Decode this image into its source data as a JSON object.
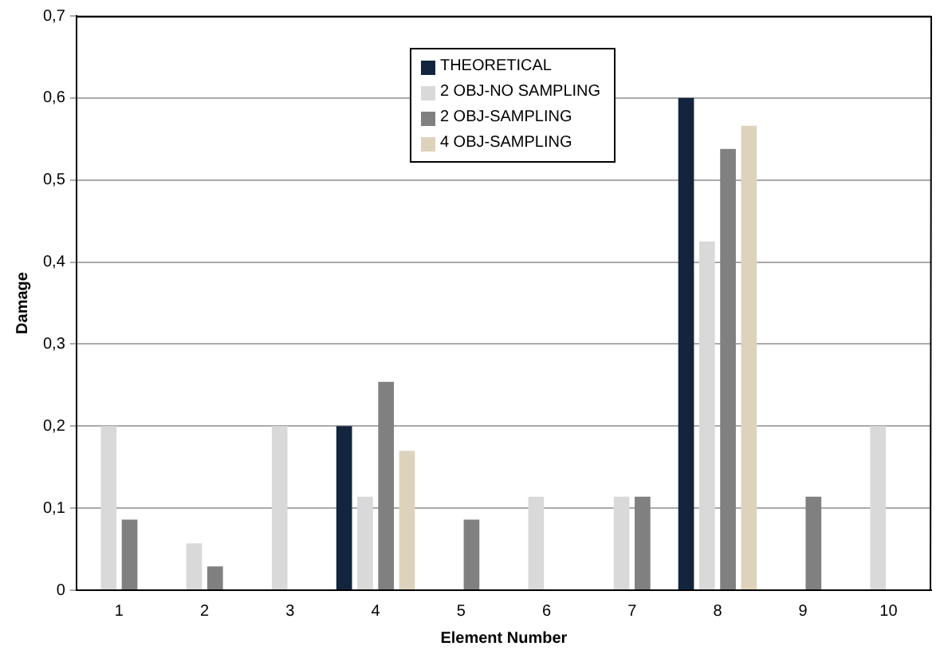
{
  "chart_data": {
    "type": "bar",
    "xlabel": "Element Number",
    "ylabel": "Damage",
    "categories": [
      "1",
      "2",
      "3",
      "4",
      "5",
      "6",
      "7",
      "8",
      "9",
      "10"
    ],
    "series": [
      {
        "name": "THEORETICAL",
        "color": "#13243f",
        "values": [
          0,
          0,
          0,
          0.2,
          0,
          0,
          0,
          0.6,
          0,
          0
        ]
      },
      {
        "name": "2 OBJ-NO SAMPLING",
        "color": "#d9d9d9",
        "values": [
          0.2,
          0.057,
          0.2,
          0.114,
          0,
          0.114,
          0.114,
          0.425,
          0,
          0.2
        ]
      },
      {
        "name": "2 OBJ-SAMPLING",
        "color": "#808080",
        "values": [
          0.086,
          0.029,
          0,
          0.254,
          0.086,
          0,
          0.114,
          0.538,
          0.114,
          0
        ]
      },
      {
        "name": "4 OBJ-SAMPLING",
        "color": "#ddd3bd",
        "values": [
          0,
          0,
          0,
          0.17,
          0,
          0,
          0,
          0.566,
          0,
          0
        ]
      }
    ],
    "ylim": [
      0,
      0.7
    ],
    "yticks": [
      {
        "value": 0,
        "label": "0"
      },
      {
        "value": 0.1,
        "label": "0,1"
      },
      {
        "value": 0.2,
        "label": "0,2"
      },
      {
        "value": 0.3,
        "label": "0,3"
      },
      {
        "value": 0.4,
        "label": "0,4"
      },
      {
        "value": 0.5,
        "label": "0,5"
      },
      {
        "value": 0.6,
        "label": "0,6"
      },
      {
        "value": 0.7,
        "label": "0,7"
      }
    ],
    "grid": "y",
    "legend": "top"
  }
}
